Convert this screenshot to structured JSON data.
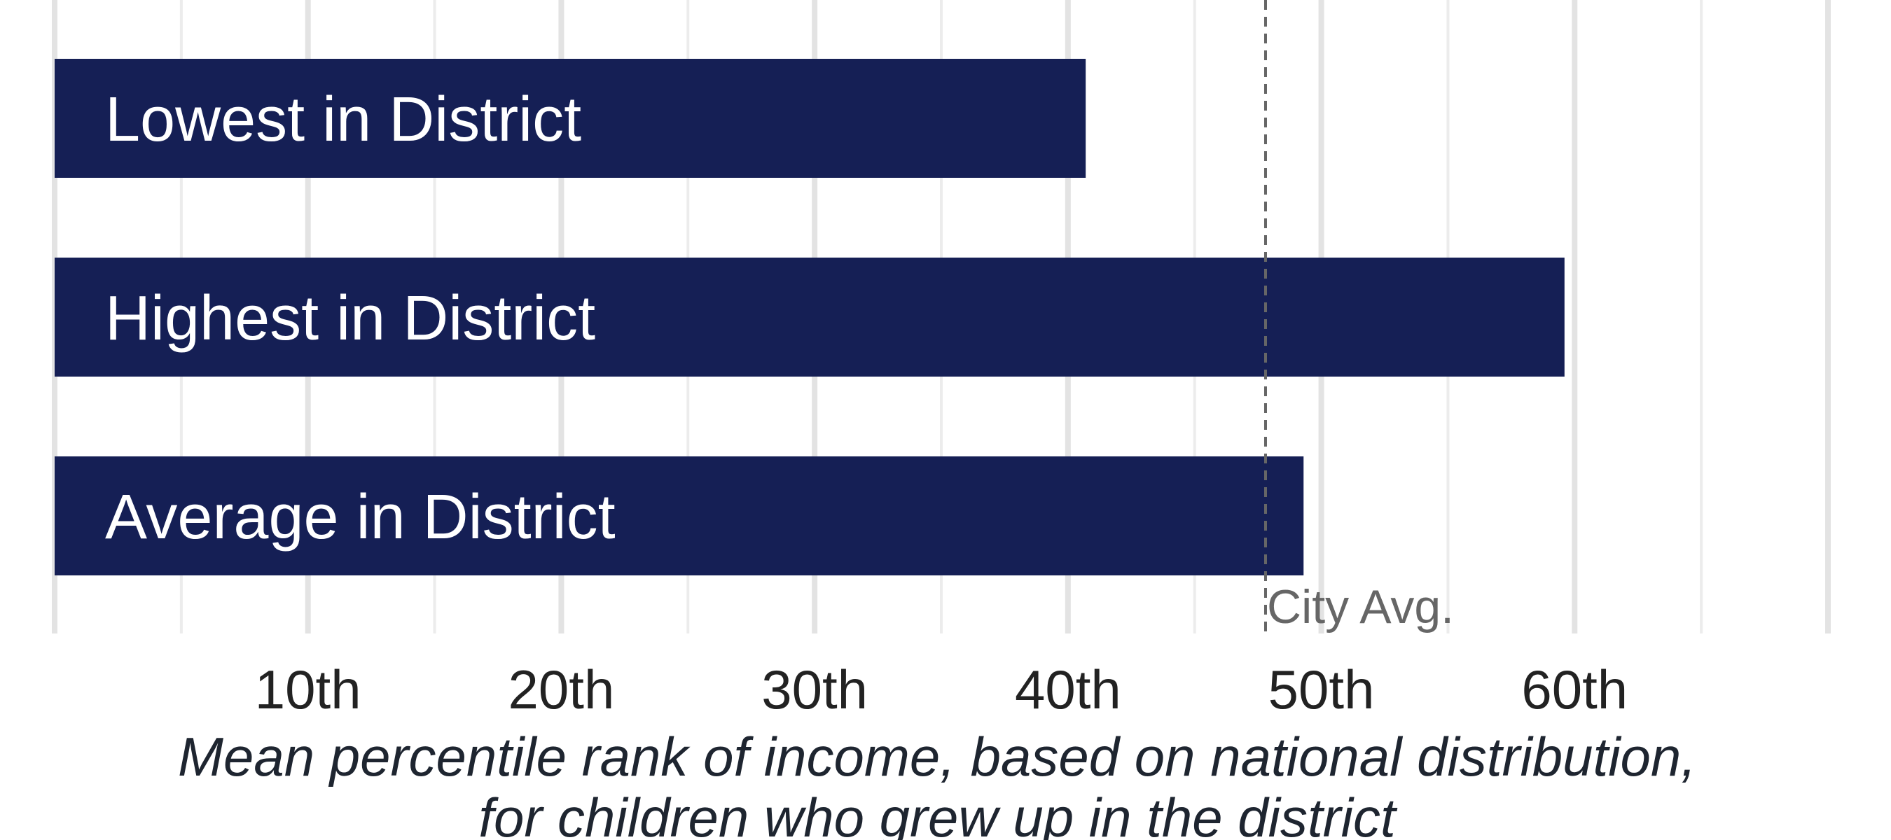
{
  "chart_data": {
    "type": "bar",
    "orientation": "horizontal",
    "categories": [
      "Lowest in District",
      "Highest in District",
      "Average in District"
    ],
    "values": [
      40.7,
      59.6,
      49.3
    ],
    "xlim": [
      0,
      70
    ],
    "xticks": [
      10,
      20,
      30,
      40,
      50,
      60
    ],
    "xtick_labels": [
      "10th",
      "20th",
      "30th",
      "40th",
      "50th",
      "60th"
    ],
    "xlabel_lines": [
      "Mean percentile rank of income, based on national distribution,",
      "for children who grew up in the district"
    ],
    "reference_line": {
      "label": "City Avg.",
      "value": 47.8
    },
    "grid": true,
    "bar_color": "#151f55"
  }
}
